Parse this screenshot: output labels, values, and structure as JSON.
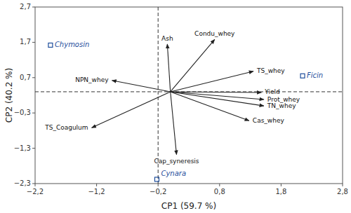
{
  "chart_data": {
    "type": "biplot",
    "xlabel": "CP1 (59.7 %)",
    "ylabel": "CP2 (40.2 %)",
    "xlim": [
      -2.2,
      2.8
    ],
    "ylim": [
      -2.3,
      2.7
    ],
    "xticks": [
      {
        "value": -2.2,
        "label": "−2,2"
      },
      {
        "value": -1.2,
        "label": "−1,2"
      },
      {
        "value": -0.2,
        "label": "−0,2"
      },
      {
        "value": 0.8,
        "label": "0,8"
      },
      {
        "value": 1.8,
        "label": "1,8"
      },
      {
        "value": 2.8,
        "label": "2,8"
      }
    ],
    "yticks": [
      {
        "value": -2.3,
        "label": "−2,3"
      },
      {
        "value": -1.3,
        "label": "−1,3"
      },
      {
        "value": -0.3,
        "label": "−0,3"
      },
      {
        "value": 0.7,
        "label": "0,7"
      },
      {
        "value": 1.7,
        "label": "1,7"
      },
      {
        "value": 2.7,
        "label": "2,7"
      }
    ],
    "grid": false,
    "vline": -0.2,
    "hline": 0.3,
    "arrow_origin": {
      "x": 0.0,
      "y": 0.3
    },
    "loadings": {
      "labels": [
        "Ash",
        "Condu_whey",
        "TS_whey",
        "Yield",
        "Prot_whey",
        "TN_whey",
        "Cas_whey",
        "Cap_syneresis",
        "NPN_whey",
        "TS_Coagulum"
      ],
      "x": [
        -0.05,
        0.72,
        1.35,
        1.48,
        1.52,
        1.52,
        1.28,
        0.1,
        -0.95,
        -1.28
      ],
      "y": [
        1.65,
        1.78,
        0.88,
        0.28,
        0.08,
        -0.1,
        -0.52,
        -1.48,
        0.62,
        -0.72
      ]
    },
    "scores": {
      "labels": [
        "Chymosin",
        "Ficin",
        "Cynara"
      ],
      "x": [
        -1.95,
        2.15,
        -0.22
      ],
      "y": [
        1.62,
        0.75,
        -2.18
      ]
    }
  }
}
